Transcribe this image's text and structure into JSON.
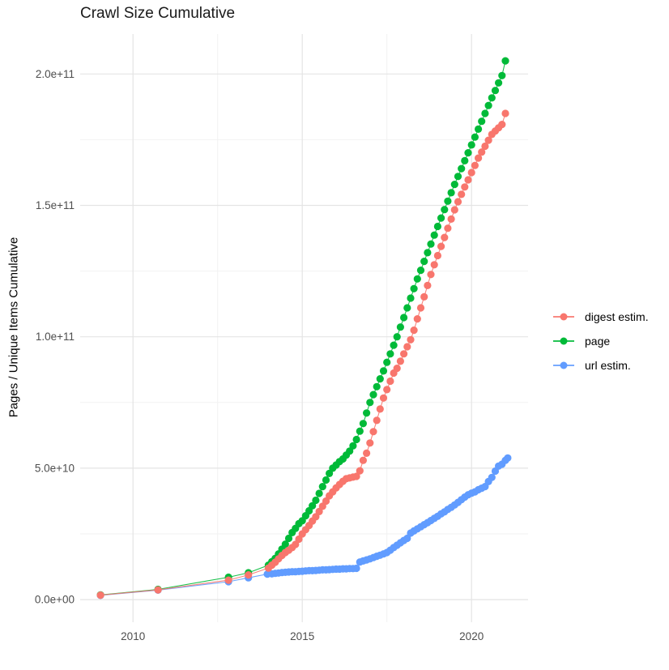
{
  "chart": {
    "title": "Crawl Size Cumulative",
    "y_axis_label": "Pages / Unique Items Cumulative",
    "x_axis_label": ""
  },
  "legend": {
    "position": "right",
    "entries": [
      {
        "label": "digest estim.",
        "color": "#F8766D"
      },
      {
        "label": "page",
        "color": "#00BA38"
      },
      {
        "label": "url estim.",
        "color": "#619CFF"
      }
    ]
  },
  "chart_data": {
    "type": "scatter",
    "mark": "point+line",
    "title": "Crawl Size Cumulative",
    "xlabel": "",
    "ylabel": "Pages / Unique Items Cumulative",
    "grid": "major+minor",
    "legend_position": "right",
    "value_unit": "1e9",
    "xlim": [
      2008.44,
      2021.67
    ],
    "ylim_billions": [
      -8.6,
      215.2
    ],
    "x_ticks": [
      {
        "label": "2010",
        "year": 2010
      },
      {
        "label": "2015",
        "year": 2015
      },
      {
        "label": "2020",
        "year": 2020
      }
    ],
    "x_minor_ticks": [
      2012.5,
      2017.5
    ],
    "y_ticks": [
      {
        "label": "0.0e+00",
        "billions": 0
      },
      {
        "label": "5.0e+10",
        "billions": 50
      },
      {
        "label": "1.0e+11",
        "billions": 100
      },
      {
        "label": "1.5e+11",
        "billions": 150
      },
      {
        "label": "2.0e+11",
        "billions": 200
      }
    ],
    "y_minor_ticks_billions": [
      25,
      75,
      125,
      175
    ],
    "series": [
      {
        "name": "digest estim.",
        "color": "#F8766D",
        "points_year_billions": [
          [
            2009.04,
            1.7
          ],
          [
            2010.74,
            3.7
          ],
          [
            2012.82,
            7.4
          ],
          [
            2013.41,
            9.4
          ],
          [
            2014.0,
            12.0
          ],
          [
            2014.1,
            13.1
          ],
          [
            2014.2,
            14.2
          ],
          [
            2014.3,
            15.5
          ],
          [
            2014.4,
            16.8
          ],
          [
            2014.5,
            17.9
          ],
          [
            2014.6,
            18.8
          ],
          [
            2014.7,
            19.8
          ],
          [
            2014.8,
            21.0
          ],
          [
            2014.9,
            23.0
          ],
          [
            2015.0,
            25.0
          ],
          [
            2015.1,
            26.6
          ],
          [
            2015.2,
            28.2
          ],
          [
            2015.3,
            29.9
          ],
          [
            2015.4,
            31.5
          ],
          [
            2015.5,
            33.5
          ],
          [
            2015.6,
            35.5
          ],
          [
            2015.7,
            37.5
          ],
          [
            2015.8,
            39.5
          ],
          [
            2015.9,
            41.0
          ],
          [
            2016.0,
            42.5
          ],
          [
            2016.1,
            43.8
          ],
          [
            2016.2,
            45.0
          ],
          [
            2016.3,
            46.0
          ],
          [
            2016.4,
            46.3
          ],
          [
            2016.5,
            46.6
          ],
          [
            2016.6,
            46.9
          ],
          [
            2016.7,
            49.0
          ],
          [
            2016.8,
            53.0
          ],
          [
            2016.9,
            55.7
          ],
          [
            2017.0,
            59.6
          ],
          [
            2017.1,
            63.9
          ],
          [
            2017.2,
            68.2
          ],
          [
            2017.3,
            72.5
          ],
          [
            2017.4,
            76.7
          ],
          [
            2017.5,
            79.9
          ],
          [
            2017.6,
            83.1
          ],
          [
            2017.7,
            86.2
          ],
          [
            2017.8,
            88.0
          ],
          [
            2017.9,
            90.7
          ],
          [
            2018.0,
            93.5
          ],
          [
            2018.1,
            96.2
          ],
          [
            2018.2,
            98.9
          ],
          [
            2018.3,
            102.5
          ],
          [
            2018.4,
            106.8
          ],
          [
            2018.5,
            111.0
          ],
          [
            2018.6,
            115.2
          ],
          [
            2018.7,
            119.5
          ],
          [
            2018.8,
            123.7
          ],
          [
            2018.9,
            127.4
          ],
          [
            2019.0,
            130.9
          ],
          [
            2019.1,
            134.4
          ],
          [
            2019.2,
            137.8
          ],
          [
            2019.3,
            141.3
          ],
          [
            2019.4,
            144.8
          ],
          [
            2019.5,
            148.3
          ],
          [
            2019.6,
            151.4
          ],
          [
            2019.7,
            154.2
          ],
          [
            2019.8,
            157.0
          ],
          [
            2019.9,
            159.7
          ],
          [
            2020.0,
            162.5
          ],
          [
            2020.1,
            165.2
          ],
          [
            2020.2,
            168.0
          ],
          [
            2020.3,
            170.3
          ],
          [
            2020.4,
            172.5
          ],
          [
            2020.5,
            174.8
          ],
          [
            2020.6,
            177.0
          ],
          [
            2020.7,
            178.3
          ],
          [
            2020.8,
            179.5
          ],
          [
            2020.9,
            180.8
          ],
          [
            2021.0,
            185.0
          ]
        ]
      },
      {
        "name": "page",
        "color": "#00BA38",
        "points_year_billions": [
          [
            2009.04,
            1.8
          ],
          [
            2010.74,
            3.9
          ],
          [
            2012.82,
            8.5
          ],
          [
            2013.41,
            10.2
          ],
          [
            2014.0,
            13.1
          ],
          [
            2014.1,
            14.4
          ],
          [
            2014.2,
            15.7
          ],
          [
            2014.3,
            17.4
          ],
          [
            2014.4,
            19.2
          ],
          [
            2014.5,
            21.1
          ],
          [
            2014.6,
            23.3
          ],
          [
            2014.7,
            25.5
          ],
          [
            2014.8,
            27.1
          ],
          [
            2014.9,
            28.9
          ],
          [
            2015.0,
            30.0
          ],
          [
            2015.1,
            31.9
          ],
          [
            2015.2,
            33.8
          ],
          [
            2015.3,
            35.7
          ],
          [
            2015.4,
            37.8
          ],
          [
            2015.5,
            40.4
          ],
          [
            2015.6,
            43.0
          ],
          [
            2015.7,
            45.5
          ],
          [
            2015.8,
            48.0
          ],
          [
            2015.9,
            50.0
          ],
          [
            2016.0,
            51.2
          ],
          [
            2016.1,
            52.5
          ],
          [
            2016.2,
            53.5
          ],
          [
            2016.3,
            55.0
          ],
          [
            2016.4,
            56.5
          ],
          [
            2016.5,
            58.5
          ],
          [
            2016.6,
            60.9
          ],
          [
            2016.7,
            64.1
          ],
          [
            2016.8,
            67.0
          ],
          [
            2016.9,
            71.0
          ],
          [
            2017.0,
            75.0
          ],
          [
            2017.1,
            78.0
          ],
          [
            2017.2,
            81.0
          ],
          [
            2017.3,
            84.0
          ],
          [
            2017.4,
            87.0
          ],
          [
            2017.5,
            90.3
          ],
          [
            2017.6,
            93.5
          ],
          [
            2017.7,
            96.8
          ],
          [
            2017.8,
            100.0
          ],
          [
            2017.9,
            103.7
          ],
          [
            2018.0,
            107.3
          ],
          [
            2018.1,
            111.0
          ],
          [
            2018.2,
            114.7
          ],
          [
            2018.3,
            118.3
          ],
          [
            2018.4,
            122.0
          ],
          [
            2018.5,
            125.3
          ],
          [
            2018.6,
            128.7
          ],
          [
            2018.7,
            132.0
          ],
          [
            2018.8,
            135.3
          ],
          [
            2018.9,
            138.7
          ],
          [
            2019.0,
            142.0
          ],
          [
            2019.1,
            145.2
          ],
          [
            2019.2,
            148.4
          ],
          [
            2019.3,
            151.6
          ],
          [
            2019.4,
            154.8
          ],
          [
            2019.5,
            158.0
          ],
          [
            2019.6,
            161.0
          ],
          [
            2019.7,
            164.0
          ],
          [
            2019.8,
            167.0
          ],
          [
            2019.9,
            170.0
          ],
          [
            2020.0,
            173.0
          ],
          [
            2020.1,
            176.0
          ],
          [
            2020.2,
            179.0
          ],
          [
            2020.3,
            182.0
          ],
          [
            2020.4,
            185.0
          ],
          [
            2020.5,
            188.0
          ],
          [
            2020.6,
            190.9
          ],
          [
            2020.7,
            193.7
          ],
          [
            2020.8,
            196.6
          ],
          [
            2020.9,
            199.4
          ],
          [
            2021.0,
            205.0
          ]
        ]
      },
      {
        "name": "url estim.",
        "color": "#619CFF",
        "points_year_billions": [
          [
            2009.04,
            1.6
          ],
          [
            2010.74,
            3.6
          ],
          [
            2012.82,
            6.8
          ],
          [
            2013.41,
            8.3
          ],
          [
            2013.97,
            9.7
          ],
          [
            2014.1,
            9.8
          ],
          [
            2014.2,
            10.0
          ],
          [
            2014.3,
            10.1
          ],
          [
            2014.4,
            10.3
          ],
          [
            2014.5,
            10.4
          ],
          [
            2014.6,
            10.5
          ],
          [
            2014.7,
            10.6
          ],
          [
            2014.8,
            10.6
          ],
          [
            2014.9,
            10.7
          ],
          [
            2015.0,
            10.8
          ],
          [
            2015.1,
            10.9
          ],
          [
            2015.2,
            11.0
          ],
          [
            2015.3,
            11.0
          ],
          [
            2015.4,
            11.1
          ],
          [
            2015.5,
            11.2
          ],
          [
            2015.6,
            11.3
          ],
          [
            2015.7,
            11.3
          ],
          [
            2015.8,
            11.4
          ],
          [
            2015.9,
            11.5
          ],
          [
            2016.0,
            11.6
          ],
          [
            2016.1,
            11.6
          ],
          [
            2016.2,
            11.7
          ],
          [
            2016.3,
            11.7
          ],
          [
            2016.4,
            11.8
          ],
          [
            2016.5,
            11.8
          ],
          [
            2016.6,
            11.9
          ],
          [
            2016.7,
            14.3
          ],
          [
            2016.8,
            14.7
          ],
          [
            2016.9,
            15.1
          ],
          [
            2017.0,
            15.5
          ],
          [
            2017.1,
            16.0
          ],
          [
            2017.2,
            16.5
          ],
          [
            2017.3,
            16.9
          ],
          [
            2017.4,
            17.4
          ],
          [
            2017.5,
            17.9
          ],
          [
            2017.6,
            18.8
          ],
          [
            2017.7,
            19.8
          ],
          [
            2017.8,
            20.7
          ],
          [
            2017.9,
            21.6
          ],
          [
            2018.0,
            22.5
          ],
          [
            2018.1,
            23.3
          ],
          [
            2018.2,
            25.3
          ],
          [
            2018.3,
            26.1
          ],
          [
            2018.4,
            26.9
          ],
          [
            2018.5,
            27.7
          ],
          [
            2018.6,
            28.5
          ],
          [
            2018.7,
            29.3
          ],
          [
            2018.8,
            30.1
          ],
          [
            2018.9,
            30.9
          ],
          [
            2019.0,
            31.7
          ],
          [
            2019.1,
            32.6
          ],
          [
            2019.2,
            33.4
          ],
          [
            2019.3,
            34.3
          ],
          [
            2019.4,
            35.1
          ],
          [
            2019.5,
            36.0
          ],
          [
            2019.6,
            37.0
          ],
          [
            2019.7,
            38.0
          ],
          [
            2019.8,
            39.0
          ],
          [
            2019.9,
            39.9
          ],
          [
            2020.0,
            40.5
          ],
          [
            2020.1,
            41.0
          ],
          [
            2020.2,
            41.8
          ],
          [
            2020.3,
            42.4
          ],
          [
            2020.4,
            43.0
          ],
          [
            2020.5,
            44.9
          ],
          [
            2020.6,
            46.5
          ],
          [
            2020.7,
            48.9
          ],
          [
            2020.8,
            50.8
          ],
          [
            2020.9,
            51.5
          ],
          [
            2021.0,
            53.0
          ],
          [
            2021.07,
            53.9
          ]
        ]
      }
    ]
  }
}
